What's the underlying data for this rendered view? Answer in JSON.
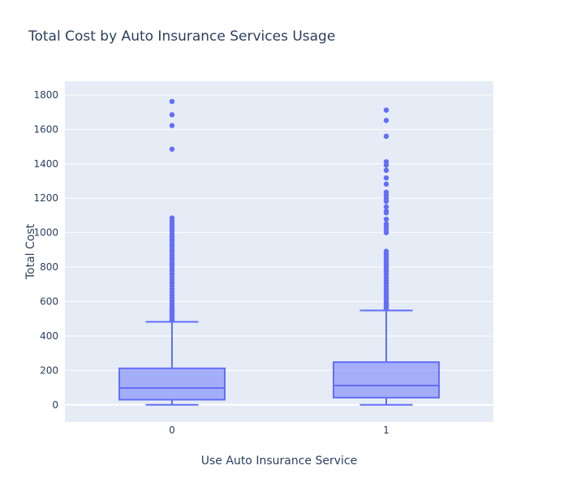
{
  "colors": {
    "plot_bg": "#E5ECF6",
    "grid": "#FFFFFF",
    "box_line": "#636EFA",
    "box_fill": "#636EFA",
    "text": "#2a3f5f"
  },
  "chart_data": {
    "type": "box",
    "title": "Total Cost by Auto Insurance Services Usage",
    "xlabel": "Use Auto Insurance Service",
    "ylabel": "Total Cost",
    "categories": [
      "0",
      "1"
    ],
    "ylim": [
      -100,
      1880
    ],
    "yticks": [
      0,
      200,
      400,
      600,
      800,
      1000,
      1200,
      1400,
      1600,
      1800
    ],
    "grid": true,
    "legend": "none",
    "boxes": [
      {
        "category": "0",
        "min": 0,
        "q1": 30,
        "median": 98,
        "q3": 212,
        "upper_fence": 482,
        "outliers": [
          490,
          497,
          505,
          512,
          520,
          528,
          537,
          545,
          555,
          565,
          577,
          590,
          605,
          620,
          637,
          655,
          672,
          690,
          708,
          725,
          742,
          760,
          778,
          790,
          805,
          818,
          830,
          845,
          858,
          872,
          888,
          902,
          918,
          932,
          948,
          962,
          978,
          992,
          1008,
          1022,
          1038,
          1050,
          1068,
          1085,
          1485,
          1622,
          1685,
          1762
        ]
      },
      {
        "category": "1",
        "min": 0,
        "q1": 42,
        "median": 112,
        "q3": 248,
        "upper_fence": 548,
        "outliers": [
          558,
          566,
          575,
          585,
          597,
          610,
          625,
          640,
          655,
          670,
          688,
          705,
          722,
          740,
          758,
          775,
          790,
          800,
          810,
          822,
          835,
          848,
          862,
          875,
          892,
          1000,
          1018,
          1035,
          1050,
          1078,
          1115,
          1125,
          1150,
          1182,
          1200,
          1218,
          1235,
          1282,
          1318,
          1362,
          1392,
          1412,
          1560,
          1652,
          1712
        ]
      }
    ]
  }
}
